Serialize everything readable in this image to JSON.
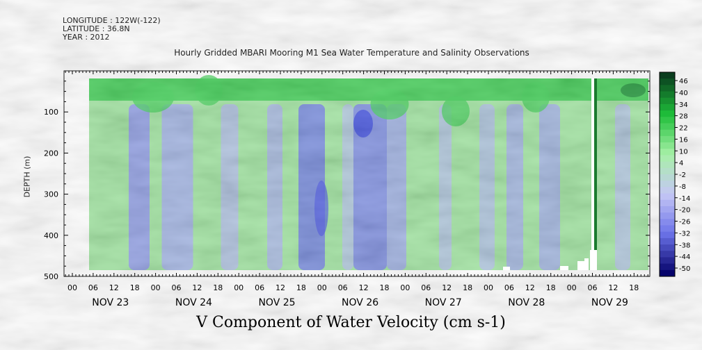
{
  "meta": {
    "longitude": "LONGITUDE : 122W(-122)",
    "latitude": "LATITUDE : 36.8N",
    "year": "YEAR : 2012"
  },
  "header": {
    "title": "Hourly Gridded MBARI Mooring M1 Sea Water Temperature and Salinity Observations"
  },
  "footer": {
    "title": "V Component of Water Velocity (cm s-1)"
  },
  "chart_data": {
    "type": "heatmap",
    "title": "Hourly Gridded MBARI Mooring M1 Sea Water Temperature and Salinity Observations",
    "subtitle": "",
    "xlabel": "",
    "ylabel": "DEPTH (m)",
    "ylim": [
      500,
      0
    ],
    "y_ticks": [
      100,
      200,
      300,
      400,
      500
    ],
    "x_hours": [
      "00",
      "06",
      "12",
      "18"
    ],
    "days": [
      "NOV 23",
      "NOV 24",
      "NOV 25",
      "NOV 26",
      "NOV 27",
      "NOV 28",
      "NOV 29"
    ],
    "colorbar": {
      "labels": [
        "46",
        "40",
        "34",
        "28",
        "22",
        "16",
        "10",
        "4",
        "-2",
        "-8",
        "-14",
        "-20",
        "-26",
        "-32",
        "-38",
        "-44",
        "-50"
      ],
      "colors": {
        "max_pos": "#0a3d1e",
        "mid_pos": "#1fbf3a",
        "near_zero_pos": "#a7f0a7",
        "near_zero_neg": "#c5c7f5",
        "mid_neg": "#6b73e8",
        "max_neg": "#06036b"
      }
    },
    "grid": false
  }
}
